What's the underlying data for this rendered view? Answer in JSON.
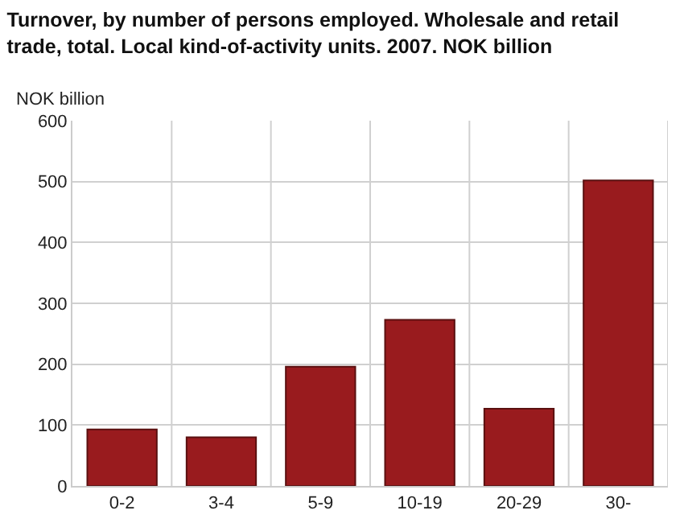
{
  "chart_data": {
    "type": "bar",
    "title": "Turnover, by number of persons employed. Wholesale and retail trade, total. Local kind-of-activity units. 2007. NOK billion",
    "ylabel": "NOK billion",
    "categories": [
      "0-2",
      "3-4",
      "5-9",
      "10-19",
      "20-29",
      "30-"
    ],
    "values": [
      93,
      80,
      196,
      273,
      127,
      502
    ],
    "color": "#991b1e",
    "ylim": [
      0,
      600
    ],
    "yticks": [
      0,
      100,
      200,
      300,
      400,
      500,
      600
    ],
    "grid": true
  }
}
